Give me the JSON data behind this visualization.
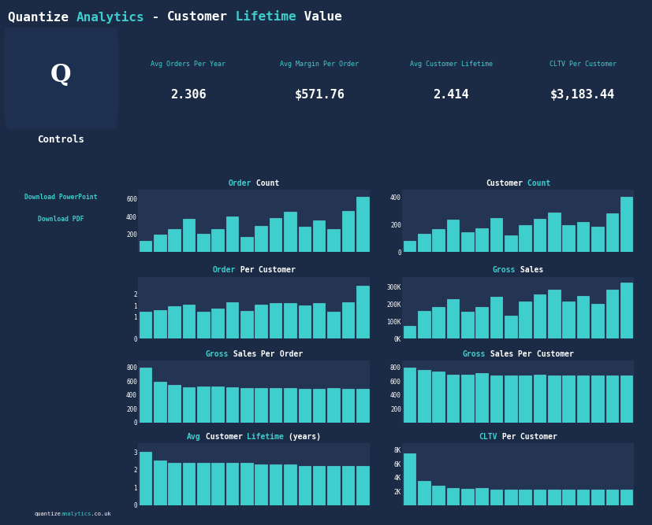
{
  "bg_color": "#1b2b45",
  "panel_color": "#243554",
  "bar_color": "#3ecece",
  "bar_edge": "#5ee8e8",
  "cyan": "#3ecece",
  "white": "#ffffff",
  "order_count": [
    130,
    200,
    255,
    375,
    210,
    260,
    405,
    170,
    295,
    385,
    455,
    290,
    355,
    255,
    465,
    625
  ],
  "customer_count": [
    80,
    130,
    165,
    235,
    145,
    175,
    245,
    120,
    195,
    240,
    285,
    195,
    220,
    185,
    280,
    400
  ],
  "order_per_customer": [
    1.2,
    1.3,
    1.45,
    1.55,
    1.2,
    1.35,
    1.65,
    1.25,
    1.55,
    1.6,
    1.6,
    1.5,
    1.6,
    1.2,
    1.65,
    2.4
  ],
  "gross_sales": [
    75000,
    160000,
    185000,
    230000,
    155000,
    185000,
    245000,
    135000,
    215000,
    255000,
    285000,
    215000,
    250000,
    200000,
    285000,
    325000
  ],
  "gross_sales_per_order": [
    800,
    590,
    550,
    510,
    530,
    520,
    510,
    500,
    500,
    505,
    500,
    490,
    490,
    500,
    490,
    495
  ],
  "gross_sales_per_cust": [
    800,
    760,
    740,
    700,
    700,
    720,
    690,
    690,
    690,
    700,
    680,
    680,
    680,
    690,
    680,
    680
  ],
  "avg_lifetime": [
    3.0,
    2.5,
    2.4,
    2.4,
    2.4,
    2.4,
    2.4,
    2.4,
    2.3,
    2.3,
    2.3,
    2.2,
    2.2,
    2.2,
    2.2,
    2.2
  ],
  "cltv_per_customer": [
    7500,
    3500,
    2800,
    2500,
    2400,
    2500,
    2300,
    2300,
    2300,
    2300,
    2300,
    2200,
    2200,
    2200,
    2200,
    2200
  ],
  "kpi_labels": [
    "Avg Orders Per Year",
    "Avg Margin Per Order",
    "Avg Customer Lifetime",
    "CLTV Per Customer"
  ],
  "kpi_values": [
    "2.306",
    "$571.76",
    "2.414",
    "$3,183.44"
  ],
  "chart_specs": [
    {
      "key": "order_count",
      "ylim": [
        0,
        700
      ],
      "yticks": [
        200,
        400,
        600
      ],
      "ytick_labels": [
        "600",
        "400",
        "200"
      ],
      "title": [
        [
          "Order",
          " Count"
        ],
        [
          "#3ecece",
          "white"
        ]
      ]
    },
    {
      "key": "customer_count",
      "ylim": [
        0,
        450
      ],
      "yticks": [
        0,
        200,
        400
      ],
      "ytick_labels": [
        "400",
        "200",
        "0"
      ],
      "title": [
        [
          "Customer",
          " Count"
        ],
        [
          "white",
          "#3ecece"
        ]
      ]
    },
    {
      "key": "order_per_customer",
      "ylim": [
        0,
        2.8
      ],
      "yticks": [
        0,
        1,
        1.5,
        2
      ],
      "ytick_labels": [
        "2",
        "1",
        "1",
        "0"
      ],
      "title": [
        [
          "Order",
          " Per",
          " Customer"
        ],
        [
          "#3ecece",
          "white",
          "white"
        ]
      ]
    },
    {
      "key": "gross_sales",
      "ylim": [
        0,
        360000
      ],
      "yticks": [
        0,
        100000,
        200000,
        300000
      ],
      "ytick_labels": [
        "300K",
        "200K",
        "100K",
        "0K"
      ],
      "title": [
        [
          "Gross",
          " Sales"
        ],
        [
          "#3ecece",
          "white"
        ]
      ]
    },
    {
      "key": "gross_sales_per_order",
      "ylim": [
        0,
        900
      ],
      "yticks": [
        0,
        200,
        400,
        600,
        800
      ],
      "ytick_labels": [
        "800",
        "600",
        "400",
        "200",
        "0"
      ],
      "title": [
        [
          "Gross",
          " Sales",
          " Per",
          " Order"
        ],
        [
          "#3ecece",
          "white",
          "white",
          "white"
        ]
      ]
    },
    {
      "key": "gross_sales_per_cust",
      "ylim": [
        0,
        900
      ],
      "yticks": [
        200,
        400,
        600,
        800
      ],
      "ytick_labels": [
        "800",
        "600",
        "400",
        "200"
      ],
      "title": [
        [
          "Gross",
          " Sales",
          " Per",
          " Customer"
        ],
        [
          "#3ecece",
          "white",
          "white",
          "white"
        ]
      ]
    },
    {
      "key": "avg_lifetime",
      "ylim": [
        0,
        3.5
      ],
      "yticks": [
        0,
        1,
        2,
        3
      ],
      "ytick_labels": [
        "3",
        "2",
        "1",
        "0"
      ],
      "title": [
        [
          "Avg",
          " Customer",
          " Lifetime",
          " (years)"
        ],
        [
          "#3ecece",
          "white",
          "#3ecece",
          "white"
        ]
      ]
    },
    {
      "key": "cltv_per_customer",
      "ylim": [
        0,
        9000
      ],
      "yticks": [
        2000,
        4000,
        6000,
        8000
      ],
      "ytick_labels": [
        "8K",
        "6K",
        "4K",
        "2K"
      ],
      "title": [
        [
          "CLTV",
          " Per",
          " Customer"
        ],
        [
          "#3ecece",
          "white",
          "white"
        ]
      ]
    }
  ]
}
